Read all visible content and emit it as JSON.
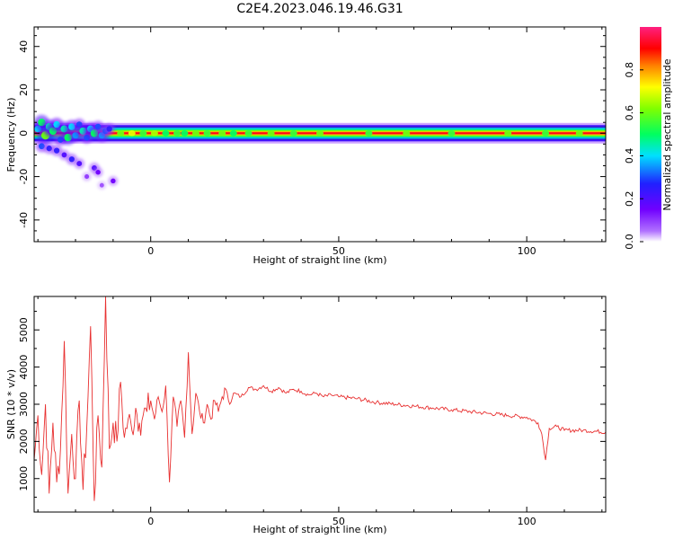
{
  "figure_title": "C2E4.2023.046.19.46.G31",
  "chart_data": [
    {
      "type": "heatmap",
      "xlabel": "Height of straight line (km)",
      "ylabel": "Frequency (Hz)",
      "xlim": [
        -31,
        121
      ],
      "ylim": [
        -50,
        49
      ],
      "xticks": [
        "0",
        "50",
        "100"
      ],
      "yticks": [
        "-40",
        "-20",
        "0",
        "20",
        "40"
      ],
      "colorbar": {
        "label": "Normalized spectral amplitude",
        "ticks": [
          "0.0",
          "0.2",
          "0.4",
          "0.6",
          "0.8"
        ],
        "range": [
          0,
          1
        ],
        "colormap": [
          "#ffffff",
          "#a000ff",
          "#2020ff",
          "#00e0ff",
          "#00ff30",
          "#ffff00",
          "#ff8000",
          "#ff0000",
          "#ff2080"
        ]
      },
      "main_band": {
        "frequency_hz": 0,
        "halfwidth_hz": 2.5,
        "x_start_km": -31,
        "x_end_km": 121,
        "peak_amplitude": 1.0
      },
      "scatter_blobs": [
        {
          "x": -30,
          "y": 2,
          "v": 0.4
        },
        {
          "x": -29,
          "y": 5,
          "v": 0.5
        },
        {
          "x": -28,
          "y": -1,
          "v": 0.6
        },
        {
          "x": -27,
          "y": 3,
          "v": 0.45
        },
        {
          "x": -26,
          "y": 1,
          "v": 0.5
        },
        {
          "x": -25,
          "y": 4,
          "v": 0.4
        },
        {
          "x": -24,
          "y": -3,
          "v": 0.3
        },
        {
          "x": -23,
          "y": 2,
          "v": 0.45
        },
        {
          "x": -22,
          "y": -2,
          "v": 0.5
        },
        {
          "x": -21,
          "y": 3,
          "v": 0.4
        },
        {
          "x": -20,
          "y": -1,
          "v": 0.35
        },
        {
          "x": -19,
          "y": 4,
          "v": 0.3
        },
        {
          "x": -18,
          "y": 1,
          "v": 0.45
        },
        {
          "x": -17,
          "y": -2,
          "v": 0.3
        },
        {
          "x": -16,
          "y": 2,
          "v": 0.4
        },
        {
          "x": -15,
          "y": 0,
          "v": 0.5
        },
        {
          "x": -14,
          "y": 3,
          "v": 0.3
        },
        {
          "x": -13,
          "y": -1,
          "v": 0.35
        },
        {
          "x": -12,
          "y": 1,
          "v": 0.3
        },
        {
          "x": -11,
          "y": 2,
          "v": 0.25
        },
        {
          "x": -29,
          "y": -6,
          "v": 0.3
        },
        {
          "x": -27,
          "y": -7,
          "v": 0.25
        },
        {
          "x": -25,
          "y": -8,
          "v": 0.25
        },
        {
          "x": -23,
          "y": -10,
          "v": 0.2
        },
        {
          "x": -21,
          "y": -12,
          "v": 0.25
        },
        {
          "x": -19,
          "y": -14,
          "v": 0.2
        },
        {
          "x": -15,
          "y": -16,
          "v": 0.2
        },
        {
          "x": -14,
          "y": -18,
          "v": 0.15
        },
        {
          "x": -10,
          "y": -22,
          "v": 0.15
        },
        {
          "x": -17,
          "y": -20,
          "v": 0.1
        },
        {
          "x": -13,
          "y": -24,
          "v": 0.08
        }
      ],
      "band_nodes": [
        {
          "x": -8,
          "v": 0.6
        },
        {
          "x": -5,
          "v": 0.7
        },
        {
          "x": -2,
          "v": 0.55
        },
        {
          "x": 1,
          "v": 0.65
        },
        {
          "x": 4,
          "v": 0.5
        },
        {
          "x": 7,
          "v": 0.55
        },
        {
          "x": 9,
          "v": 0.5
        },
        {
          "x": 12,
          "v": 0.6
        },
        {
          "x": 15,
          "v": 0.55
        },
        {
          "x": 19,
          "v": 0.6
        },
        {
          "x": 22,
          "v": 0.5
        },
        {
          "x": 26,
          "v": 0.55
        },
        {
          "x": 32,
          "v": 0.6
        },
        {
          "x": 38,
          "v": 0.55
        },
        {
          "x": 45,
          "v": 0.6
        },
        {
          "x": 58,
          "v": 0.55
        },
        {
          "x": 68,
          "v": 0.6
        },
        {
          "x": 80,
          "v": 0.55
        },
        {
          "x": 95,
          "v": 0.6
        },
        {
          "x": 105,
          "v": 0.55
        },
        {
          "x": 114,
          "v": 0.6
        }
      ]
    },
    {
      "type": "line",
      "xlabel": "Height of straight line (km)",
      "ylabel": "SNR (10 * v/v)",
      "xlim": [
        -31,
        121
      ],
      "ylim": [
        100,
        5900
      ],
      "xticks": [
        "0",
        "50",
        "100"
      ],
      "yticks": [
        "1000",
        "2000",
        "3000",
        "4000",
        "5000"
      ],
      "color": "#e83030",
      "series": [
        {
          "x": [
            -31,
            -30,
            -29,
            -28,
            -27,
            -26,
            -25,
            -24,
            -23,
            -22,
            -21,
            -20,
            -19,
            -18,
            -17,
            -16,
            -15,
            -14,
            -13,
            -12,
            -11,
            -10,
            -9,
            -8,
            -7,
            -6,
            -5,
            -4,
            -3,
            -2,
            -1,
            0,
            1,
            2,
            3,
            4,
            5,
            6,
            7,
            8,
            9,
            10,
            11,
            12,
            13,
            14,
            15,
            16,
            17,
            18,
            19,
            20,
            21,
            22,
            24,
            26,
            28,
            30,
            32,
            34,
            36,
            38,
            40,
            42,
            44,
            46,
            48,
            50,
            55,
            60,
            65,
            70,
            75,
            80,
            85,
            90,
            95,
            100,
            103,
            104,
            105,
            106,
            108,
            110,
            115,
            121
          ],
          "y": [
            1500,
            2700,
            1100,
            3000,
            600,
            2500,
            900,
            1800,
            4700,
            600,
            2200,
            1000,
            3100,
            700,
            2400,
            5100,
            400,
            2700,
            1300,
            5900,
            1800,
            2500,
            2000,
            3600,
            2100,
            2600,
            2300,
            2900,
            2500,
            2700,
            2800,
            3100,
            2600,
            3200,
            2800,
            3500,
            900,
            3200,
            2400,
            3100,
            2100,
            4400,
            2200,
            3300,
            2800,
            2500,
            3000,
            2600,
            3100,
            2800,
            3200,
            3400,
            3000,
            3300,
            3200,
            3450,
            3400,
            3500,
            3350,
            3450,
            3300,
            3400,
            3350,
            3250,
            3300,
            3200,
            3250,
            3200,
            3150,
            3050,
            3000,
            2950,
            2900,
            2850,
            2800,
            2750,
            2700,
            2650,
            2500,
            2200,
            1500,
            2350,
            2400,
            2300,
            2300,
            2250
          ]
        }
      ]
    }
  ]
}
